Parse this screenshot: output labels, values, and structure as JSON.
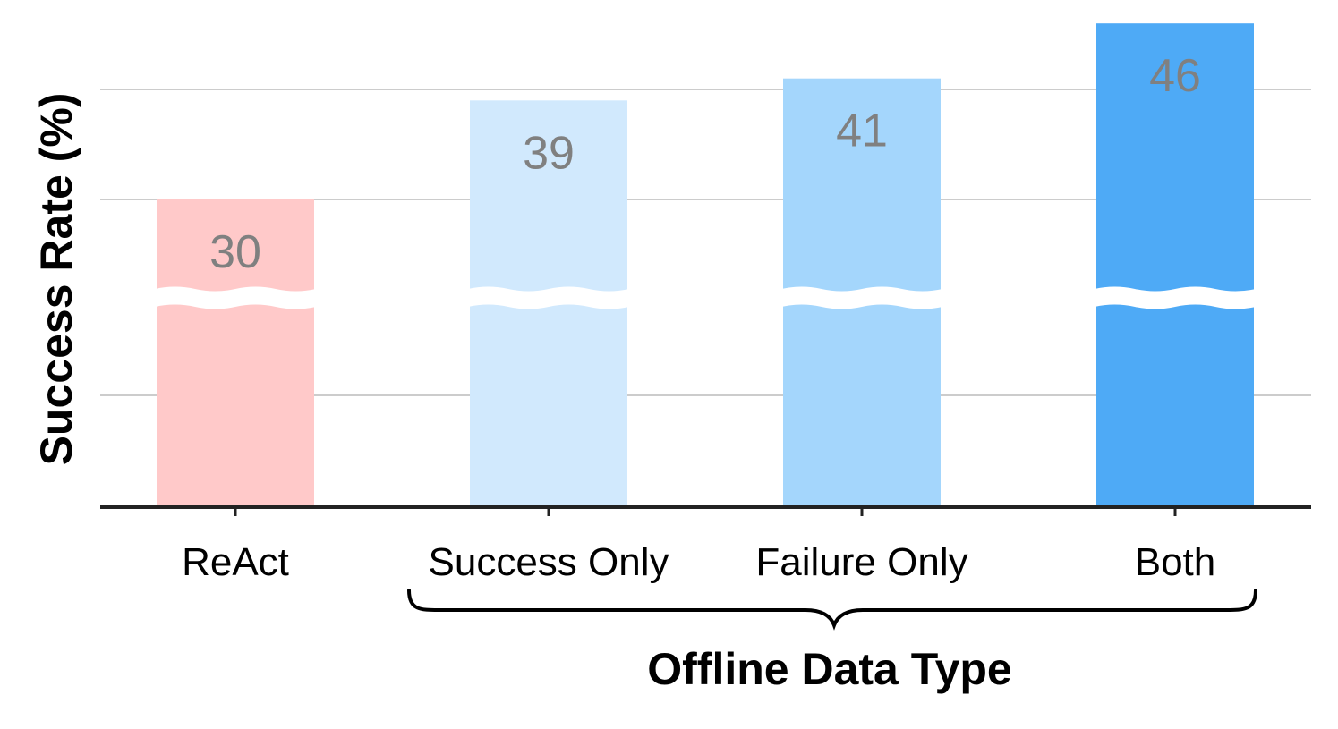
{
  "chart_data": {
    "type": "bar",
    "categories": [
      "ReAct",
      "Success Only",
      "Failure Only",
      "Both"
    ],
    "values": [
      30,
      39,
      41,
      46
    ],
    "value_labels": [
      "30",
      "39",
      "41",
      "46"
    ],
    "colors": [
      "#ffc9c9",
      "#d1e9fd",
      "#a4d6fc",
      "#4eaaf6"
    ],
    "title": "",
    "xlabel": "Offline Data Type",
    "ylabel": "Success Rate (%)",
    "axis_break": true,
    "grid": true,
    "group_brace": {
      "label": "Offline Data Type",
      "categories": [
        "Success Only",
        "Failure Only",
        "Both"
      ]
    }
  }
}
